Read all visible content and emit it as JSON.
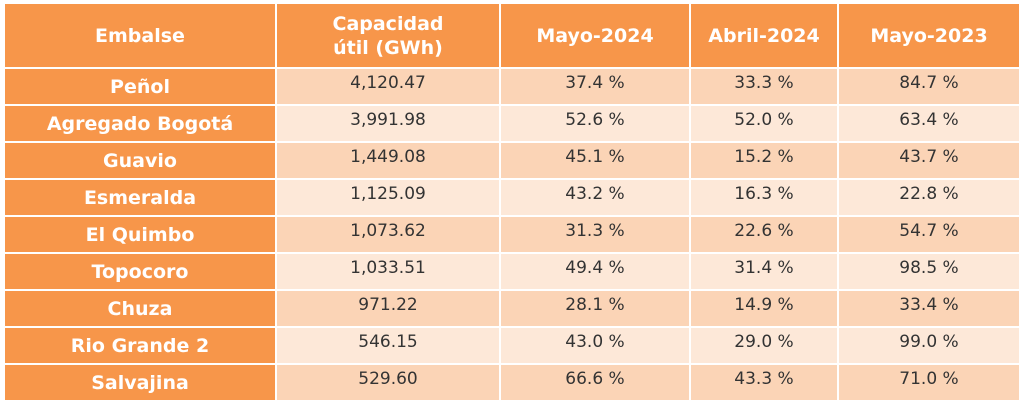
{
  "table": {
    "headers": [
      "Embalse",
      "Capacidad útil (GWh)",
      "Mayo-2024",
      "Abril-2024",
      "Mayo-2023"
    ],
    "rows": [
      [
        "Peñol",
        "4,120.47",
        "37.4 %",
        "33.3 %",
        "84.7 %"
      ],
      [
        "Agregado Bogotá",
        "3,991.98",
        "52.6 %",
        "52.0 %",
        "63.4 %"
      ],
      [
        "Guavio",
        "1,449.08",
        "45.1 %",
        "15.2 %",
        "43.7 %"
      ],
      [
        "Esmeralda",
        "1,125.09",
        "43.2 %",
        "16.3 %",
        "22.8 %"
      ],
      [
        "El Quimbo",
        "1,073.62",
        "31.3 %",
        "22.6 %",
        "54.7 %"
      ],
      [
        "Topocoro",
        "1,033.51",
        "49.4 %",
        "31.4 %",
        "98.5 %"
      ],
      [
        "Chuza",
        "971.22",
        "28.1 %",
        "14.9 %",
        "33.4 %"
      ],
      [
        "Rio Grande 2",
        "546.15",
        "43.0 %",
        "29.0 %",
        "99.0 %"
      ],
      [
        "Salvajina",
        "529.60",
        "66.6 %",
        "43.3 %",
        "71.0 %"
      ]
    ]
  },
  "colors": {
    "header_bg": "#f7964a",
    "row_dark": "#fbd4b6",
    "row_light": "#fde8d8",
    "header_text": "#ffffff"
  }
}
